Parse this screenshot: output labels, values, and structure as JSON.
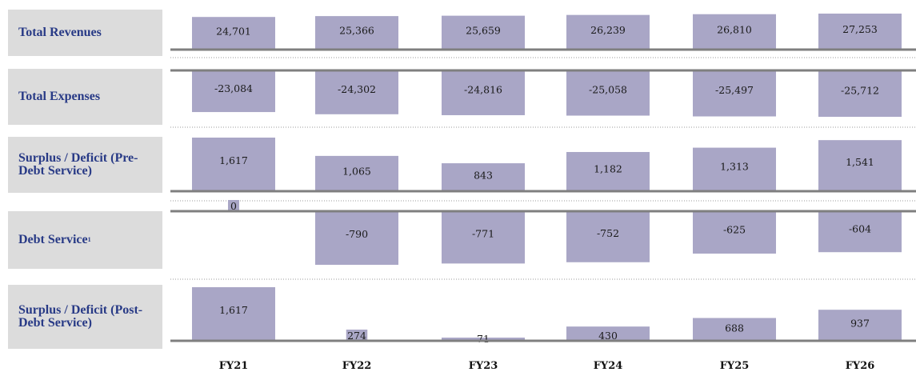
{
  "chart_data": {
    "type": "bar",
    "categories": [
      "FY21",
      "FY22",
      "FY23",
      "FY24",
      "FY25",
      "FY26"
    ],
    "series": [
      {
        "name": "Total Revenues",
        "values": [
          24701,
          25366,
          25659,
          26239,
          26810,
          27253
        ]
      },
      {
        "name": "Total Expenses",
        "values": [
          -23084,
          -24302,
          -24816,
          -25058,
          -25497,
          -25712
        ]
      },
      {
        "name": "Surplus / Deficit (Pre-Debt Service)",
        "values": [
          1617,
          1065,
          843,
          1182,
          1313,
          1541
        ]
      },
      {
        "name": "Debt Service",
        "footnote": "1",
        "values": [
          0,
          -790,
          -771,
          -752,
          -625,
          -604
        ]
      },
      {
        "name": "Surplus / Deficit (Post-Debt Service)",
        "values": [
          1617,
          274,
          71,
          430,
          688,
          937
        ]
      }
    ],
    "labels": [
      [
        "24,701",
        "25,366",
        "25,659",
        "26,239",
        "26,810",
        "27,253"
      ],
      [
        "-23,084",
        "-24,302",
        "-24,816",
        "-25,058",
        "-25,497",
        "-25,712"
      ],
      [
        "1,617",
        "1,065",
        "843",
        "1,182",
        "1,313",
        "1,541"
      ],
      [
        "0",
        "-790",
        "-771",
        "-752",
        "-625",
        "-604"
      ],
      [
        "1,617",
        "274",
        "71",
        "430",
        "688",
        "937"
      ]
    ],
    "grid": false,
    "legend": "none",
    "colors": {
      "bar": "#a9a6c6",
      "axis": "#7f7f7f",
      "label_bg": "#dcdcdc",
      "label_text": "#283a86"
    }
  }
}
